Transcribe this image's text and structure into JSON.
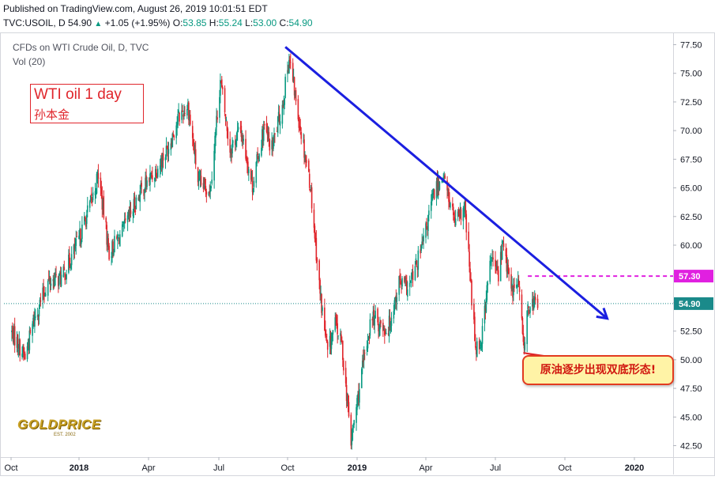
{
  "header": {
    "published": "Published on TradingView.com, August 26, 2019 10:01:51 EDT",
    "symbol": "TVC:USOIL, D",
    "last": "54.90",
    "change": "+1.05 (+1.95%)",
    "o_label": "O:",
    "o_value": "53.85",
    "h_label": "H:",
    "h_value": "55.24",
    "l_label": "L:",
    "l_value": "53.00",
    "c_label": "C:",
    "c_value": "54.90"
  },
  "legend": {
    "series": "CFDs on WTI Crude Oil, D, TVC",
    "volume": "Vol (20)"
  },
  "annotation": {
    "title": "WTI oil 1 day",
    "author": "孙本金",
    "note": "原油逐步出现双底形态!"
  },
  "logo": {
    "text": "GOLDPRICE",
    "sub": "EST. 2002"
  },
  "colors": {
    "up": "#089981",
    "down": "#e0262c",
    "trendline": "#1b1fe0",
    "resistance": "#e020e0",
    "last_price": "#1a8a8a"
  },
  "chart_data": {
    "type": "candlestick",
    "ylim": [
      41.5,
      78.5
    ],
    "y_ticks": [
      "77.50",
      "75.00",
      "72.50",
      "70.00",
      "67.50",
      "65.00",
      "62.50",
      "60.00",
      "57.50",
      "55.00",
      "52.50",
      "50.00",
      "47.50",
      "45.00",
      "42.50"
    ],
    "x_ticks": [
      "Oct",
      "2018",
      "Apr",
      "Jul",
      "Oct",
      "2019",
      "Apr",
      "Jul",
      "Oct",
      "2020"
    ],
    "price_labels": {
      "resistance": "57.30",
      "last": "54.90"
    },
    "path_points": [
      [
        "2017-10-01",
        52.5
      ],
      [
        "2017-10-10",
        51.5
      ],
      [
        "2017-10-20",
        50.2
      ],
      [
        "2017-11-01",
        53.5
      ],
      [
        "2017-11-20",
        56.8
      ],
      [
        "2017-12-10",
        57.2
      ],
      [
        "2018-01-01",
        60.5
      ],
      [
        "2018-01-20",
        64.5
      ],
      [
        "2018-01-26",
        66.2
      ],
      [
        "2018-02-09",
        59.3
      ],
      [
        "2018-03-01",
        61.5
      ],
      [
        "2018-03-20",
        64.5
      ],
      [
        "2018-04-10",
        66.5
      ],
      [
        "2018-04-25",
        68.3
      ],
      [
        "2018-05-10",
        71.2
      ],
      [
        "2018-05-22",
        72.2
      ],
      [
        "2018-06-05",
        65.2
      ],
      [
        "2018-06-20",
        65.0
      ],
      [
        "2018-07-03",
        74.4
      ],
      [
        "2018-07-16",
        68.3
      ],
      [
        "2018-07-30",
        70.2
      ],
      [
        "2018-08-15",
        65.2
      ],
      [
        "2018-08-30",
        70.2
      ],
      [
        "2018-09-10",
        68.4
      ],
      [
        "2018-09-25",
        72.5
      ],
      [
        "2018-10-03",
        76.4
      ],
      [
        "2018-10-15",
        71.4
      ],
      [
        "2018-10-31",
        65.3
      ],
      [
        "2018-11-13",
        55.8
      ],
      [
        "2018-11-23",
        50.5
      ],
      [
        "2018-12-03",
        53.2
      ],
      [
        "2018-12-12",
        51.2
      ],
      [
        "2018-12-24",
        42.8
      ],
      [
        "2019-01-05",
        48.0
      ],
      [
        "2019-01-20",
        53.8
      ],
      [
        "2019-02-10",
        52.5
      ],
      [
        "2019-02-25",
        56.8
      ],
      [
        "2019-03-10",
        56.2
      ],
      [
        "2019-03-28",
        60.0
      ],
      [
        "2019-04-10",
        64.2
      ],
      [
        "2019-04-23",
        66.2
      ],
      [
        "2019-05-10",
        61.8
      ],
      [
        "2019-05-22",
        63.2
      ],
      [
        "2019-06-05",
        51.2
      ],
      [
        "2019-06-12",
        51.5
      ],
      [
        "2019-06-25",
        58.8
      ],
      [
        "2019-07-05",
        57.5
      ],
      [
        "2019-07-11",
        60.3
      ],
      [
        "2019-07-22",
        56.0
      ],
      [
        "2019-08-01",
        56.6
      ],
      [
        "2019-08-07",
        51.2
      ],
      [
        "2019-08-15",
        55.0
      ],
      [
        "2019-08-26",
        54.9
      ]
    ],
    "trendline": {
      "from": [
        "2018-09-28",
        77.3
      ],
      "to": [
        "2019-11-26",
        53.6
      ]
    },
    "resistance_line": {
      "from": [
        "2019-08-13",
        57.3
      ],
      "value": 57.3
    },
    "support_pointer": {
      "from": [
        "2019-08-07",
        50.6
      ],
      "to": [
        "2019-09-20",
        50.1
      ]
    },
    "last_price_line": 54.9
  }
}
